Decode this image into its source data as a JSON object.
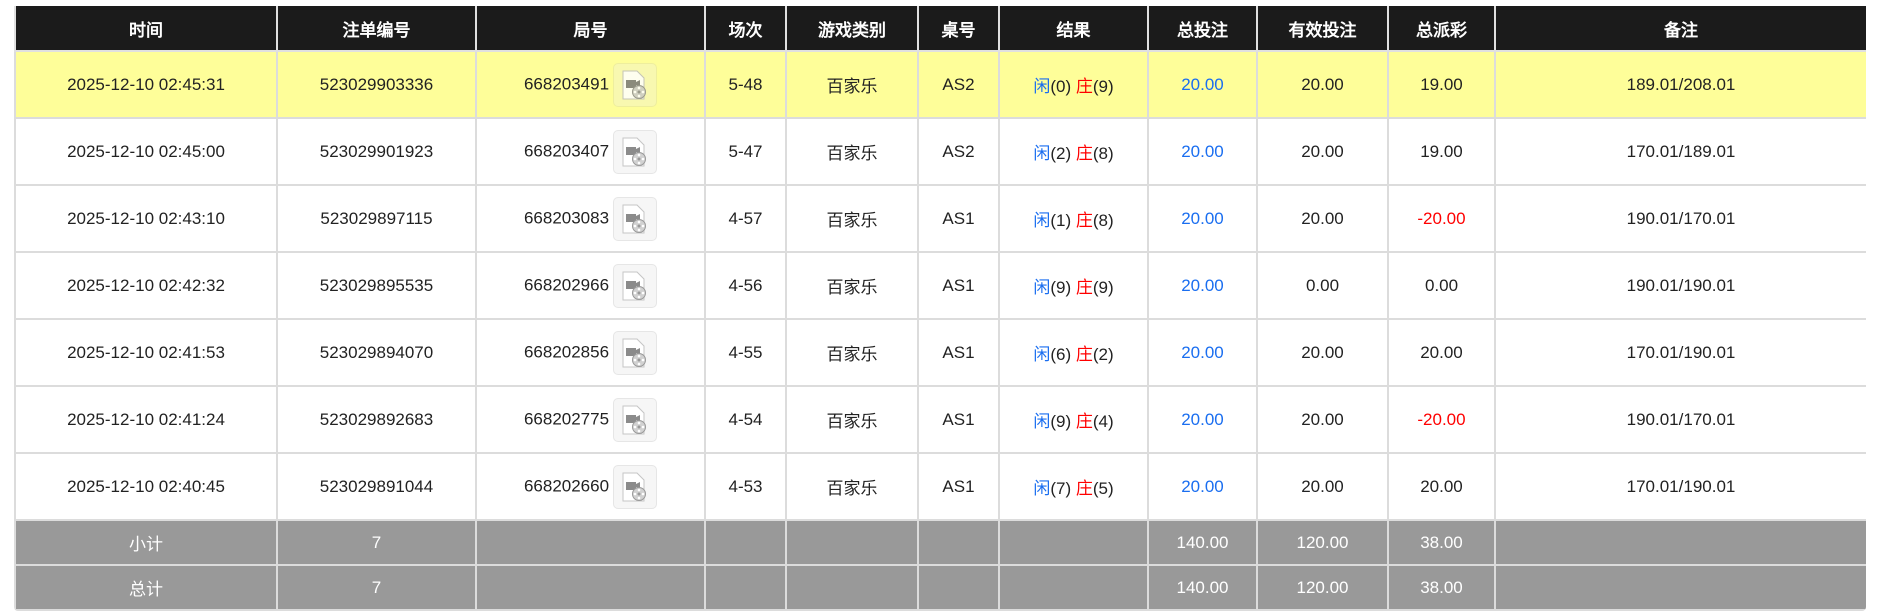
{
  "headers": [
    "时间",
    "注单编号",
    "局号",
    "场次",
    "游戏类别",
    "桌号",
    "结果",
    "总投注",
    "有效投注",
    "总派彩",
    "备注"
  ],
  "rows": [
    {
      "time": "2025-12-10 02:45:31",
      "bet_id": "523029903336",
      "round": "668203491",
      "session": "5-48",
      "game": "百家乐",
      "table": "AS2",
      "player_label": "闲",
      "player": "(0)",
      "banker_label": "庄",
      "banker": "(9)",
      "total_bet": "20.00",
      "valid_bet": "20.00",
      "payout": "19.00",
      "payout_negative": false,
      "note": "189.01/208.01",
      "highlighted": true
    },
    {
      "time": "2025-12-10 02:45:00",
      "bet_id": "523029901923",
      "round": "668203407",
      "session": "5-47",
      "game": "百家乐",
      "table": "AS2",
      "player_label": "闲",
      "player": "(2)",
      "banker_label": "庄",
      "banker": "(8)",
      "total_bet": "20.00",
      "valid_bet": "20.00",
      "payout": "19.00",
      "payout_negative": false,
      "note": "170.01/189.01"
    },
    {
      "time": "2025-12-10 02:43:10",
      "bet_id": "523029897115",
      "round": "668203083",
      "session": "4-57",
      "game": "百家乐",
      "table": "AS1",
      "player_label": "闲",
      "player": "(1)",
      "banker_label": "庄",
      "banker": "(8)",
      "total_bet": "20.00",
      "valid_bet": "20.00",
      "payout": "-20.00",
      "payout_negative": true,
      "note": "190.01/170.01"
    },
    {
      "time": "2025-12-10 02:42:32",
      "bet_id": "523029895535",
      "round": "668202966",
      "session": "4-56",
      "game": "百家乐",
      "table": "AS1",
      "player_label": "闲",
      "player": "(9)",
      "banker_label": "庄",
      "banker": "(9)",
      "total_bet": "20.00",
      "valid_bet": "0.00",
      "payout": "0.00",
      "payout_negative": false,
      "note": "190.01/190.01"
    },
    {
      "time": "2025-12-10 02:41:53",
      "bet_id": "523029894070",
      "round": "668202856",
      "session": "4-55",
      "game": "百家乐",
      "table": "AS1",
      "player_label": "闲",
      "player": "(6)",
      "banker_label": "庄",
      "banker": "(2)",
      "total_bet": "20.00",
      "valid_bet": "20.00",
      "payout": "20.00",
      "payout_negative": false,
      "note": "170.01/190.01"
    },
    {
      "time": "2025-12-10 02:41:24",
      "bet_id": "523029892683",
      "round": "668202775",
      "session": "4-54",
      "game": "百家乐",
      "table": "AS1",
      "player_label": "闲",
      "player": "(9)",
      "banker_label": "庄",
      "banker": "(4)",
      "total_bet": "20.00",
      "valid_bet": "20.00",
      "payout": "-20.00",
      "payout_negative": true,
      "note": "190.01/170.01"
    },
    {
      "time": "2025-12-10 02:40:45",
      "bet_id": "523029891044",
      "round": "668202660",
      "session": "4-53",
      "game": "百家乐",
      "table": "AS1",
      "player_label": "闲",
      "player": "(7)",
      "banker_label": "庄",
      "banker": "(5)",
      "total_bet": "20.00",
      "valid_bet": "20.00",
      "payout": "20.00",
      "payout_negative": false,
      "note": "170.01/190.01"
    }
  ],
  "summary": [
    {
      "label": "小计",
      "count": "7",
      "total_bet": "140.00",
      "valid_bet": "120.00",
      "payout": "38.00"
    },
    {
      "label": "总计",
      "count": "7",
      "total_bet": "140.00",
      "valid_bet": "120.00",
      "payout": "38.00"
    }
  ],
  "colors": {
    "header_bg": "#1b1b1b",
    "highlight": "#fefe99",
    "player": "#1a6ef0",
    "banker": "#ff0000",
    "negative": "#ff0000",
    "summary_bg": "#999999"
  },
  "icons": {
    "round_video": "video-replay-icon"
  }
}
